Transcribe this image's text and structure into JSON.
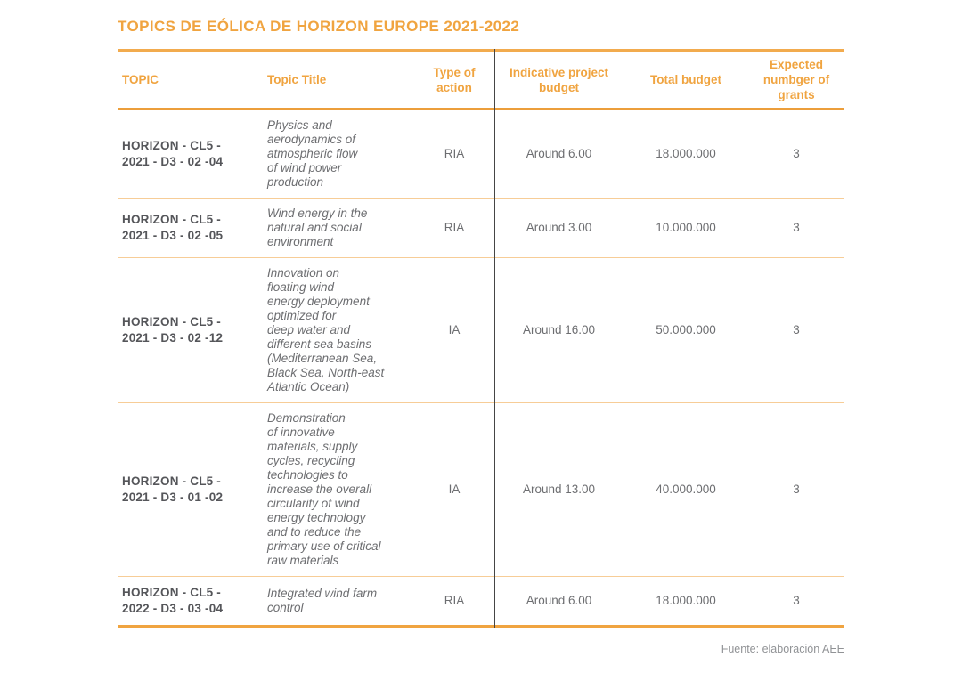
{
  "page": {
    "title": "TOPICS DE EÓLICA DE HORIZON EUROPE 2021-2022",
    "source_note": "Fuente: elaboración AEE"
  },
  "colors": {
    "accent_orange": "#f0a440",
    "rule_strong": "#ec9e3b",
    "rule_light": "#f7cd97",
    "topic_text": "#55565a",
    "body_text": "#6d6e71",
    "footer_text": "#919396",
    "divider_line": "#454545"
  },
  "table": {
    "headers": {
      "topic": "TOPIC",
      "title": "Topic Title",
      "action": "Type of\naction",
      "indicative": "Indicative project\nbudget",
      "total": "Total budget",
      "grants": "Expected\nnumbger of\ngrants"
    },
    "rows": [
      {
        "topic": "HORIZON - CL5 -\n2021 - D3 - 02 -04",
        "title": "Physics and\naerodynamics of\natmospheric flow\nof wind power\nproduction",
        "action": "RIA",
        "indicative": "Around 6.00",
        "total": "18.000.000",
        "grants": "3"
      },
      {
        "topic": "HORIZON - CL5 -\n2021 - D3 - 02 -05",
        "title": "Wind energy in the\nnatural and social\nenvironment",
        "action": "RIA",
        "indicative": "Around 3.00",
        "total": "10.000.000",
        "grants": "3"
      },
      {
        "topic": "HORIZON - CL5 -\n2021 - D3 - 02 -12",
        "title": "Innovation on\nfloating wind\nenergy deployment\noptimized for\ndeep water and\ndifferent sea basins\n(Mediterranean Sea,\nBlack Sea, North-east\nAtlantic Ocean)",
        "action": "IA",
        "indicative": "Around 16.00",
        "total": "50.000.000",
        "grants": "3"
      },
      {
        "topic": "HORIZON - CL5 -\n2021 - D3 - 01 -02",
        "title": "Demonstration\nof innovative\nmaterials, supply\ncycles, recycling\ntechnologies to\nincrease the overall\ncircularity of wind\nenergy technology\nand to reduce the\nprimary use of critical\nraw materials",
        "action": "IA",
        "indicative": "Around 13.00",
        "total": "40.000.000",
        "grants": "3"
      },
      {
        "topic": "HORIZON - CL5 -\n2022 - D3 - 03 -04",
        "title": "Integrated wind farm\ncontrol",
        "action": "RIA",
        "indicative": "Around 6.00",
        "total": "18.000.000",
        "grants": "3"
      }
    ]
  }
}
